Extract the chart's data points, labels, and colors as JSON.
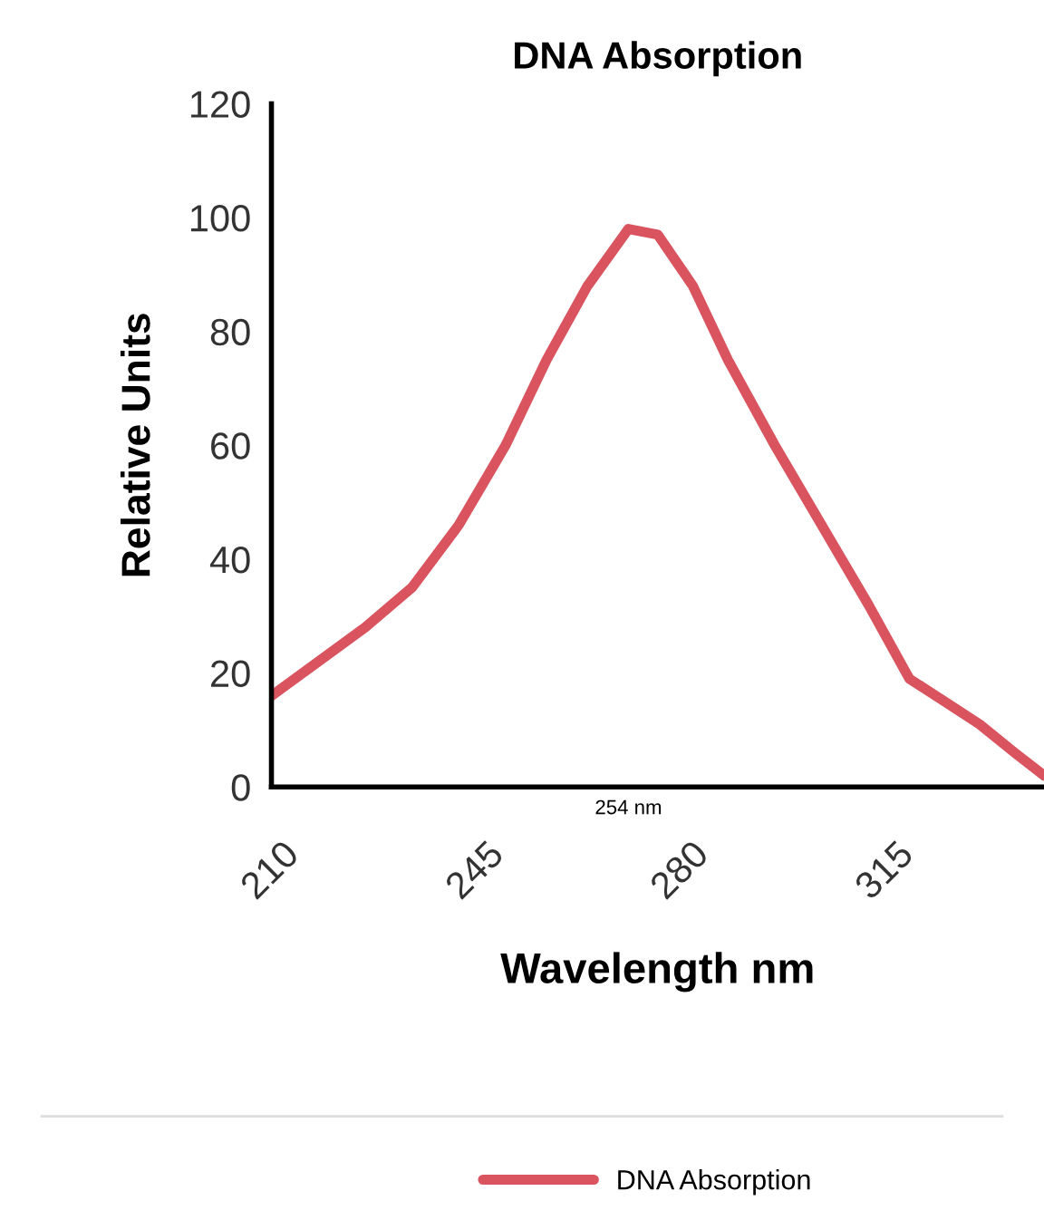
{
  "chart_data": {
    "type": "line",
    "title": "DNA Absorption",
    "xlabel": "Wavelength nm",
    "ylabel": "Relative Units",
    "annotations": [
      "254 nm"
    ],
    "xlim": [
      210,
      342
    ],
    "xticks": [
      210,
      245,
      280,
      315
    ],
    "ylim": [
      0,
      120
    ],
    "yticks": [
      0,
      20,
      40,
      60,
      80,
      100,
      120
    ],
    "grid": false,
    "legend": "bottom",
    "marker": "none",
    "line_style": "solid",
    "series": [
      {
        "name": "DNA Absorption",
        "color": "#d9545e",
        "x": [
          210,
          218,
          226,
          234,
          242,
          250,
          257,
          264,
          271,
          276,
          282,
          288,
          296,
          304,
          312,
          319,
          325,
          331,
          337,
          342
        ],
        "values": [
          16,
          22,
          28,
          35,
          46,
          60,
          75,
          88,
          98,
          97,
          88,
          75,
          60,
          46,
          32,
          19,
          15,
          11,
          6,
          2
        ]
      }
    ]
  }
}
